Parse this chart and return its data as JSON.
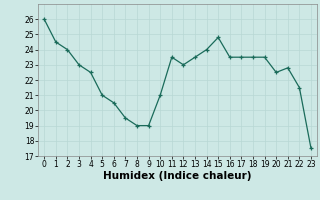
{
  "x": [
    0,
    1,
    2,
    3,
    4,
    5,
    6,
    7,
    8,
    9,
    10,
    11,
    12,
    13,
    14,
    15,
    16,
    17,
    18,
    19,
    20,
    21,
    22,
    23
  ],
  "y": [
    26.0,
    24.5,
    24.0,
    23.0,
    22.5,
    21.0,
    20.5,
    19.5,
    19.0,
    19.0,
    21.0,
    23.5,
    23.0,
    23.5,
    24.0,
    24.8,
    23.5,
    23.5,
    23.5,
    23.5,
    22.5,
    22.8,
    21.5,
    17.5
  ],
  "xlim": [
    -0.5,
    23.5
  ],
  "ylim": [
    17,
    27
  ],
  "yticks": [
    17,
    18,
    19,
    20,
    21,
    22,
    23,
    24,
    25,
    26
  ],
  "xticks": [
    0,
    1,
    2,
    3,
    4,
    5,
    6,
    7,
    8,
    9,
    10,
    11,
    12,
    13,
    14,
    15,
    16,
    17,
    18,
    19,
    20,
    21,
    22,
    23
  ],
  "xlabel": "Humidex (Indice chaleur)",
  "line_color": "#1a6b5a",
  "marker": "+",
  "bg_color": "#cde8e5",
  "grid_color": "#b8d8d4",
  "tick_fontsize": 5.5,
  "xlabel_fontsize": 7.5
}
